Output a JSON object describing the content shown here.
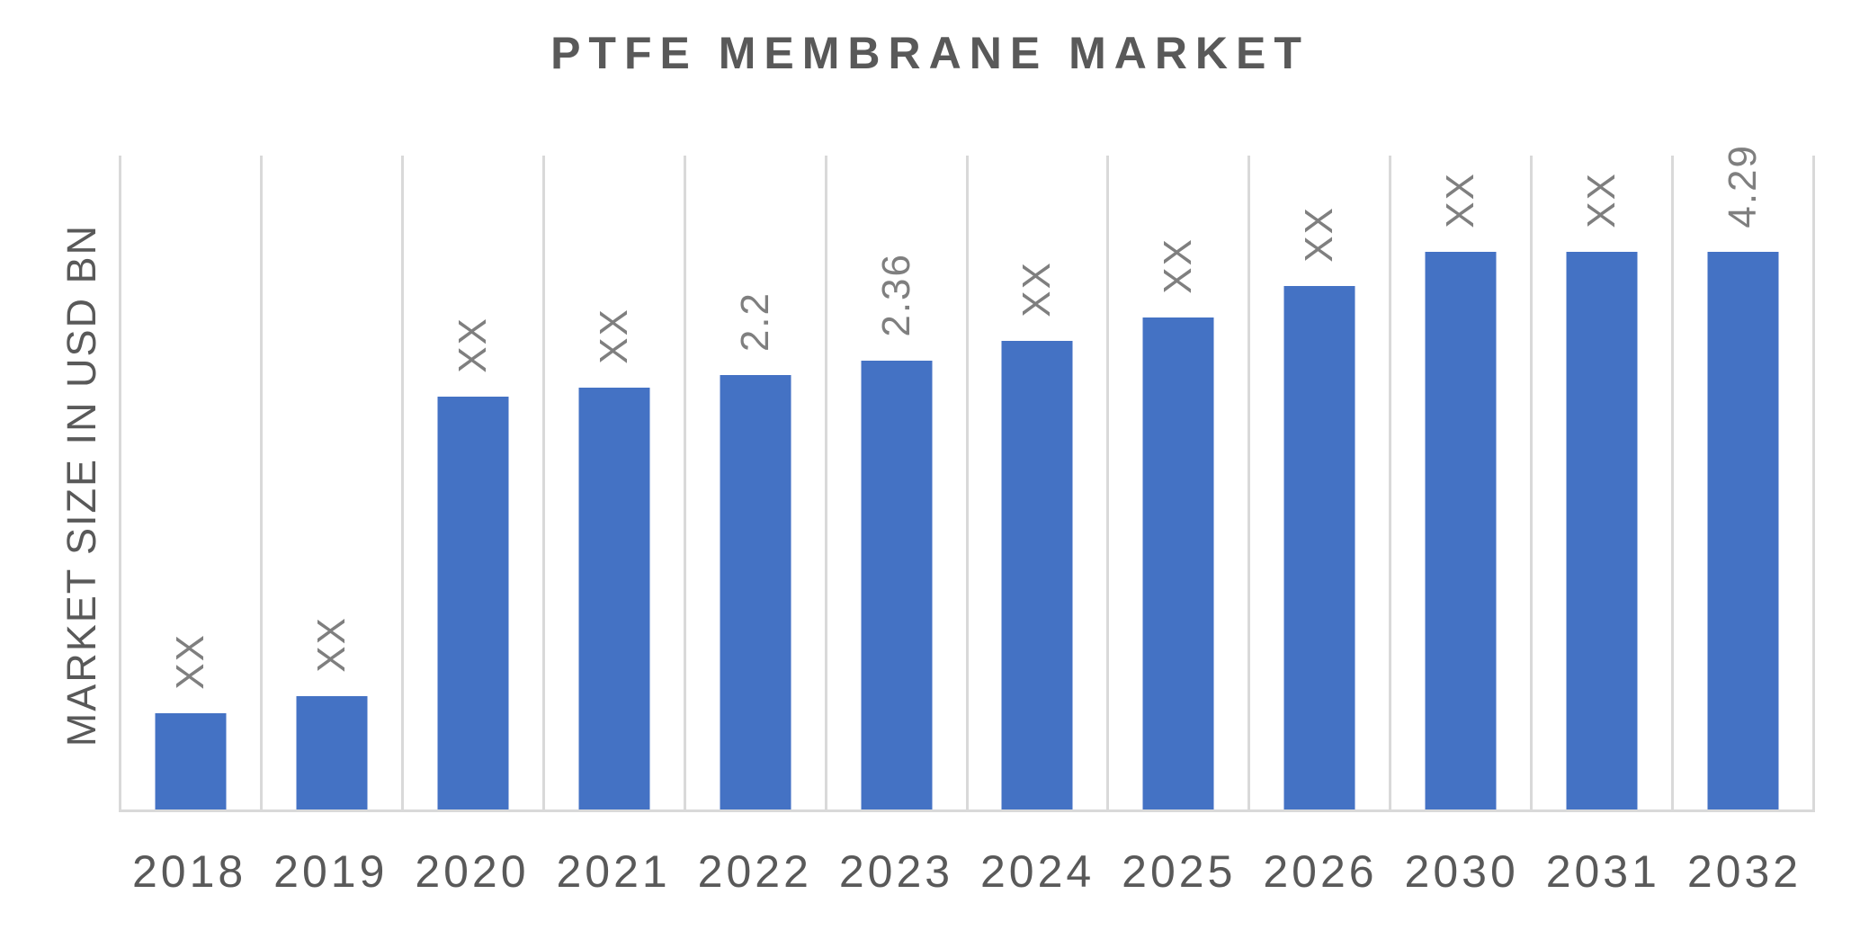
{
  "chart_data": {
    "type": "bar",
    "title": "PTFE MEMBRANE MARKET",
    "xlabel": "",
    "ylabel": "MARKET SIZE IN USD BN",
    "categories": [
      "2018",
      "2019",
      "2020",
      "2021",
      "2022",
      "2023",
      "2024",
      "2025",
      "2026",
      "2030",
      "2031",
      "2032"
    ],
    "bar_labels": [
      "XX",
      "XX",
      "XX",
      "XX",
      "2.2",
      "2.36",
      "XX",
      "XX",
      "XX",
      "XX",
      "XX",
      "4.29"
    ],
    "known_values_usd_bn": {
      "2022": 2.2,
      "2023": 2.36,
      "2032": 4.29
    },
    "bar_heights_rel": [
      0.147,
      0.174,
      0.632,
      0.645,
      0.664,
      0.686,
      0.716,
      0.753,
      0.8,
      0.853,
      0.853,
      0.853
    ],
    "bar_color": "#4472C4",
    "data_label_rotation_deg": -90,
    "data_label_color": "#7F7F7F",
    "axis_text_color": "#595959",
    "gridline_color": "#D9D9D9",
    "gridlines": "vertical category boundaries only, no horizontal gridlines",
    "y_axis_ticks": "none",
    "legend_position": "none"
  }
}
